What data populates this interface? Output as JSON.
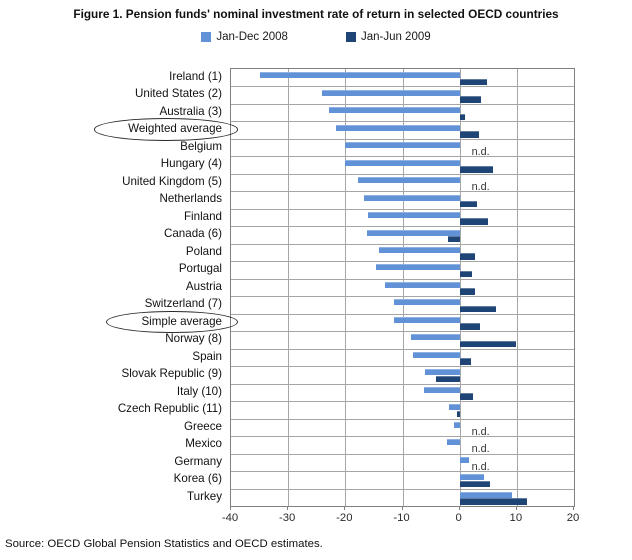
{
  "title": "Figure 1. Pension funds' nominal investment rate of return in selected OECD countries",
  "source": "Source: OECD Global Pension Statistics and OECD estimates.",
  "nd_label": "n.d.",
  "colors": {
    "series_2008": "#6191D6",
    "series_2009": "#1F4577",
    "gridline": "#A6A6A6",
    "plot_border": "#808080"
  },
  "legend": [
    {
      "label": "Jan-Dec 2008"
    },
    {
      "label": "Jan-Jun 2009"
    }
  ],
  "chart_data": {
    "type": "bar",
    "orientation": "horizontal",
    "title": "Figure 1. Pension funds' nominal investment rate of return in selected OECD countries",
    "xlabel": "",
    "ylabel": "",
    "xlim": [
      -40,
      20
    ],
    "x_ticks": [
      -40,
      -30,
      -20,
      -10,
      0,
      10,
      20
    ],
    "grid": true,
    "legend_position": "top-center",
    "missing_value_label": "n.d.",
    "circled_categories": [
      "Weighted average",
      "Simple average"
    ],
    "categories": [
      "Ireland (1)",
      "United States (2)",
      "Australia (3)",
      "Weighted average",
      "Belgium",
      "Hungary (4)",
      "United Kingdom (5)",
      "Netherlands",
      "Finland",
      "Canada (6)",
      "Poland",
      "Portugal",
      "Austria",
      "Switzerland (7)",
      "Simple average",
      "Norway (8)",
      "Spain",
      "Slovak Republic (9)",
      "Italy (10)",
      "Czech Republic (11)",
      "Greece",
      "Mexico",
      "Germany",
      "Korea (6)",
      "Turkey"
    ],
    "series": [
      {
        "name": "Jan-Dec 2008",
        "values": [
          -35,
          -24,
          -22.8,
          -21.6,
          -20,
          -20,
          -17.7,
          -16.8,
          -16.1,
          -16.2,
          -14.1,
          -14.6,
          -13.1,
          -11.5,
          -11.5,
          -8.6,
          -8.1,
          -6.0,
          -6.3,
          -1.8,
          -1.0,
          -2.2,
          1.6,
          4.2,
          9.2
        ]
      },
      {
        "name": "Jan-Jun 2009",
        "values": [
          4.8,
          3.8,
          0.9,
          3.4,
          null,
          5.8,
          null,
          3.0,
          5.0,
          -2.0,
          2.7,
          2.1,
          2.6,
          6.3,
          3.5,
          9.9,
          1.9,
          -4.2,
          2.4,
          -0.5,
          null,
          null,
          null,
          5.3,
          11.7
        ]
      }
    ]
  }
}
